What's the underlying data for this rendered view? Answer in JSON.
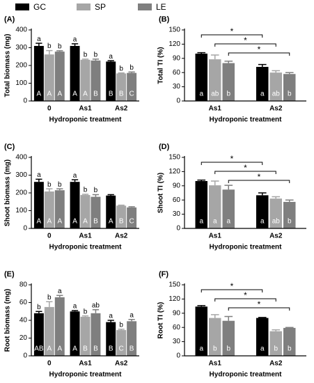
{
  "chart_data": [
    {
      "type": "bar",
      "panel_label": "(A)",
      "ylabel": "Total biomass (mg)",
      "xlabel": "Hydroponic treatment",
      "categories": [
        "0",
        "As1",
        "As2"
      ],
      "ylim": [
        0,
        400
      ],
      "yticks": [
        0,
        100,
        200,
        300,
        400
      ],
      "series": [
        {
          "name": "GC",
          "color": "#000000",
          "values": [
            310,
            310,
            222
          ],
          "errors": [
            15,
            12,
            5
          ],
          "top_letters": [
            "a",
            "a",
            "a"
          ],
          "bottom_letters": [
            "A",
            "A",
            "B"
          ]
        },
        {
          "name": "SP",
          "color": "#a6a6a6",
          "values": [
            262,
            232,
            155
          ],
          "errors": [
            22,
            4,
            3
          ],
          "top_letters": [
            "b",
            "b",
            "b"
          ],
          "bottom_letters": [
            "A",
            "A",
            "B"
          ]
        },
        {
          "name": "LE",
          "color": "#7f7f7f",
          "values": [
            278,
            228,
            158
          ],
          "errors": [
            5,
            8,
            5
          ],
          "top_letters": [
            "b",
            "b",
            "b"
          ],
          "bottom_letters": [
            "A",
            "B",
            "C"
          ]
        }
      ]
    },
    {
      "type": "bar",
      "panel_label": "(B)",
      "ylabel": "Total TI (%)",
      "xlabel": "Hydroponic treatment",
      "categories": [
        "As1",
        "As2"
      ],
      "ylim": [
        0,
        150
      ],
      "yticks": [
        0,
        30,
        60,
        90,
        120,
        150
      ],
      "series": [
        {
          "name": "GC",
          "color": "#000000",
          "values": [
            100,
            72
          ],
          "errors": [
            2,
            5
          ],
          "bottom_letters": [
            "a",
            "a"
          ]
        },
        {
          "name": "SP",
          "color": "#a6a6a6",
          "values": [
            88,
            60
          ],
          "errors": [
            9,
            4
          ],
          "bottom_letters": [
            "ab",
            "ab"
          ]
        },
        {
          "name": "LE",
          "color": "#7f7f7f",
          "values": [
            80,
            57
          ],
          "errors": [
            4,
            3
          ],
          "bottom_letters": [
            "b",
            "b"
          ]
        }
      ],
      "significance": [
        "*",
        "*",
        "*"
      ]
    },
    {
      "type": "bar",
      "panel_label": "(C)",
      "ylabel": "Shoot biomass (mg)",
      "xlabel": "Hydroponic treatment",
      "categories": [
        "0",
        "As1",
        "As2"
      ],
      "ylim": [
        0,
        400
      ],
      "yticks": [
        0,
        100,
        200,
        300,
        400
      ],
      "series": [
        {
          "name": "GC",
          "color": "#000000",
          "values": [
            262,
            262,
            185
          ],
          "errors": [
            15,
            12,
            5
          ],
          "top_letters": [
            "a",
            "a",
            null
          ],
          "bottom_letters": [
            "A",
            "A",
            "A"
          ]
        },
        {
          "name": "SP",
          "color": "#a6a6a6",
          "values": [
            208,
            188,
            128
          ],
          "errors": [
            15,
            4,
            3
          ],
          "top_letters": [
            "b",
            "b",
            null
          ],
          "bottom_letters": [
            "A",
            "A",
            "B"
          ]
        },
        {
          "name": "LE",
          "color": "#7f7f7f",
          "values": [
            215,
            178,
            118
          ],
          "errors": [
            8,
            12,
            4
          ],
          "top_letters": [
            "b",
            "b",
            null
          ],
          "bottom_letters": [
            "A",
            "B",
            "C"
          ]
        }
      ]
    },
    {
      "type": "bar",
      "panel_label": "(D)",
      "ylabel": "Shoot TI (%)",
      "xlabel": "Hydroponic treatment",
      "categories": [
        "As1",
        "As2"
      ],
      "ylim": [
        0,
        150
      ],
      "yticks": [
        0,
        30,
        60,
        90,
        120,
        150
      ],
      "series": [
        {
          "name": "GC",
          "color": "#000000",
          "values": [
            100,
            70
          ],
          "errors": [
            2,
            5
          ],
          "bottom_letters": [
            "a",
            "a"
          ]
        },
        {
          "name": "SP",
          "color": "#a6a6a6",
          "values": [
            91,
            63
          ],
          "errors": [
            9,
            4
          ],
          "bottom_letters": [
            "a",
            "ab"
          ]
        },
        {
          "name": "LE",
          "color": "#7f7f7f",
          "values": [
            82,
            56
          ],
          "errors": [
            9,
            4
          ],
          "bottom_letters": [
            "a",
            "b"
          ]
        }
      ],
      "significance": [
        "*",
        "*",
        "*"
      ]
    },
    {
      "type": "bar",
      "panel_label": "(E)",
      "ylabel": "Root biomass (mg)",
      "xlabel": "Hydroponic treatment",
      "categories": [
        "0",
        "As1",
        "As2"
      ],
      "ylim": [
        0,
        80
      ],
      "yticks": [
        0,
        20,
        40,
        60,
        80
      ],
      "series": [
        {
          "name": "GC",
          "color": "#000000",
          "values": [
            48,
            50,
            38
          ],
          "errors": [
            2,
            1,
            2
          ],
          "top_letters": [
            "b",
            "a",
            "a"
          ],
          "bottom_letters": [
            "AB",
            "A",
            "B"
          ]
        },
        {
          "name": "SP",
          "color": "#a6a6a6",
          "values": [
            55,
            44,
            29
          ],
          "errors": [
            6,
            1,
            1
          ],
          "top_letters": [
            "b",
            "b",
            "b"
          ],
          "bottom_letters": [
            "A",
            "B",
            "C"
          ]
        },
        {
          "name": "LE",
          "color": "#7f7f7f",
          "values": [
            66,
            48,
            39
          ],
          "errors": [
            2,
            4,
            2
          ],
          "top_letters": [
            "a",
            "ab",
            "a"
          ],
          "bottom_letters": [
            "A",
            "B",
            "B"
          ]
        }
      ]
    },
    {
      "type": "bar",
      "panel_label": "(F)",
      "ylabel": "Root TI (%)",
      "xlabel": "Hydroponic treatment",
      "categories": [
        "As1",
        "As2"
      ],
      "ylim": [
        0,
        150
      ],
      "yticks": [
        0,
        30,
        60,
        90,
        120,
        150
      ],
      "series": [
        {
          "name": "GC",
          "color": "#000000",
          "values": [
            104,
            80
          ],
          "errors": [
            2,
            1
          ],
          "bottom_letters": [
            "a",
            "a"
          ]
        },
        {
          "name": "SP",
          "color": "#a6a6a6",
          "values": [
            80,
            52
          ],
          "errors": [
            7,
            3
          ],
          "bottom_letters": [
            "b",
            "b"
          ]
        },
        {
          "name": "LE",
          "color": "#7f7f7f",
          "values": [
            74,
            59
          ],
          "errors": [
            9,
            1
          ],
          "bottom_letters": [
            "b",
            "b"
          ]
        }
      ],
      "significance": [
        "*",
        "*",
        "*"
      ]
    }
  ]
}
